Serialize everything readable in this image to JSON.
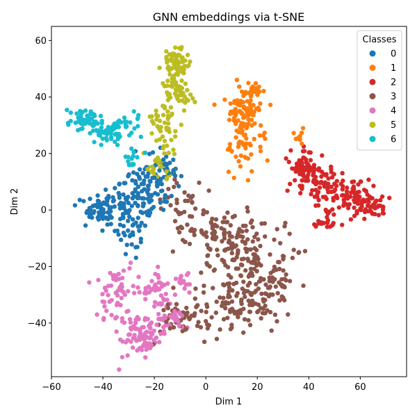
{
  "chart_data": {
    "type": "scatter",
    "title": "GNN embeddings via t-SNE",
    "xlabel": "Dim 1",
    "ylabel": "Dim 2",
    "xlim": [
      -60,
      78
    ],
    "ylim": [
      -59,
      65
    ],
    "xticks": [
      -60,
      -40,
      -20,
      0,
      20,
      40,
      60
    ],
    "yticks": [
      -40,
      -20,
      0,
      20,
      40,
      60
    ],
    "grid": false,
    "legend": {
      "title": "Classes",
      "placement": "top-right"
    },
    "series": [
      {
        "name": "0",
        "color": "#1f77b4",
        "clusters": [
          {
            "cx": -42,
            "cy": 0,
            "sx": 3.5,
            "sy": 2.5,
            "n": 70
          },
          {
            "cx": -30,
            "cy": 2,
            "sx": 4.5,
            "sy": 3.5,
            "n": 60
          },
          {
            "cx": -22,
            "cy": 8,
            "sx": 5,
            "sy": 5,
            "n": 70
          },
          {
            "cx": -16,
            "cy": 15,
            "sx": 4,
            "sy": 4,
            "n": 30
          },
          {
            "cx": -30,
            "cy": -9,
            "sx": 3,
            "sy": 3,
            "n": 25
          }
        ]
      },
      {
        "name": "1",
        "color": "#ff7f0e",
        "clusters": [
          {
            "cx": 14,
            "cy": 35,
            "sx": 3.5,
            "sy": 4,
            "n": 90
          },
          {
            "cx": 15,
            "cy": 22,
            "sx": 4,
            "sy": 3.5,
            "n": 40
          },
          {
            "cx": 19,
            "cy": 42,
            "sx": 1.5,
            "sy": 1.2,
            "n": 15
          },
          {
            "cx": 36,
            "cy": 26,
            "sx": 1.2,
            "sy": 1.5,
            "n": 10
          }
        ]
      },
      {
        "name": "2",
        "color": "#d62728",
        "clusters": [
          {
            "cx": 38,
            "cy": 15,
            "sx": 3.5,
            "sy": 4,
            "n": 60
          },
          {
            "cx": 45,
            "cy": 10,
            "sx": 5,
            "sy": 4,
            "n": 70
          },
          {
            "cx": 58,
            "cy": 5,
            "sx": 4.5,
            "sy": 3,
            "n": 70
          },
          {
            "cx": 65,
            "cy": 1,
            "sx": 3,
            "sy": 2,
            "n": 30
          },
          {
            "cx": 48,
            "cy": -3,
            "sx": 4,
            "sy": 2.5,
            "n": 25
          }
        ]
      },
      {
        "name": "3",
        "color": "#8c564b",
        "clusters": [
          {
            "cx": 5,
            "cy": -10,
            "sx": 7,
            "sy": 6,
            "n": 90
          },
          {
            "cx": 18,
            "cy": -18,
            "sx": 7,
            "sy": 7,
            "n": 110
          },
          {
            "cx": 15,
            "cy": -33,
            "sx": 9,
            "sy": 5,
            "n": 110
          },
          {
            "cx": -8,
            "cy": -38,
            "sx": 6,
            "sy": 3.5,
            "n": 50
          },
          {
            "cx": 30,
            "cy": -25,
            "sx": 3,
            "sy": 3,
            "n": 25
          },
          {
            "cx": -10,
            "cy": 2,
            "sx": 4,
            "sy": 6,
            "n": 35
          }
        ]
      },
      {
        "name": "4",
        "color": "#e377c2",
        "clusters": [
          {
            "cx": -25,
            "cy": -44,
            "sx": 4.5,
            "sy": 4,
            "n": 90
          },
          {
            "cx": -35,
            "cy": -30,
            "sx": 3,
            "sy": 6,
            "n": 50
          },
          {
            "cx": -20,
            "cy": -28,
            "sx": 3,
            "sy": 3,
            "n": 45
          },
          {
            "cx": -14,
            "cy": -37,
            "sx": 4,
            "sy": 3,
            "n": 30
          },
          {
            "cx": -8,
            "cy": -26,
            "sx": 2,
            "sy": 2.5,
            "n": 15
          }
        ]
      },
      {
        "name": "5",
        "color": "#bcbd22",
        "clusters": [
          {
            "cx": -12,
            "cy": 52,
            "sx": 2.5,
            "sy": 3,
            "n": 60
          },
          {
            "cx": -11,
            "cy": 42,
            "sx": 3,
            "sy": 3,
            "n": 55
          },
          {
            "cx": -16,
            "cy": 30,
            "sx": 3.5,
            "sy": 4,
            "n": 45
          },
          {
            "cx": -17,
            "cy": 15,
            "sx": 3.5,
            "sy": 2.5,
            "n": 30
          }
        ]
      },
      {
        "name": "6",
        "color": "#17becf",
        "clusters": [
          {
            "cx": -48,
            "cy": 32,
            "sx": 3,
            "sy": 1.8,
            "n": 55
          },
          {
            "cx": -39,
            "cy": 27,
            "sx": 3,
            "sy": 2.5,
            "n": 45
          },
          {
            "cx": -31,
            "cy": 31,
            "sx": 3,
            "sy": 2,
            "n": 25
          },
          {
            "cx": -28,
            "cy": 18,
            "sx": 2.5,
            "sy": 2.5,
            "n": 15
          }
        ]
      }
    ]
  }
}
